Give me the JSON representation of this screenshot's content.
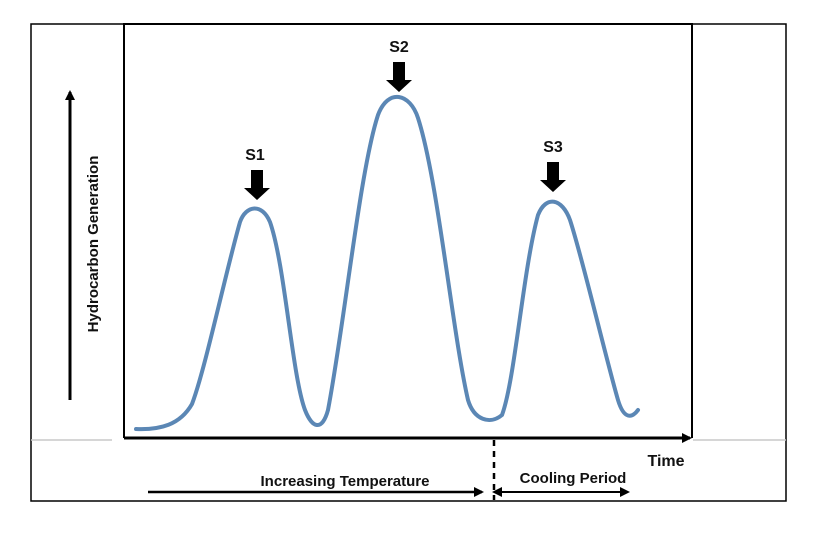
{
  "diagram": {
    "peaks": [
      {
        "label": "S1"
      },
      {
        "label": "S2"
      },
      {
        "label": "S3"
      }
    ],
    "y_axis_label": "Hydrocarbon Generation",
    "x_axis_label": "Time",
    "phases": [
      {
        "label": "Increasing Temperature"
      },
      {
        "label": "Cooling Period"
      }
    ],
    "colors": {
      "curve": "#5B87B5",
      "axes": "#000000",
      "frame": "#000000",
      "guide_line": "#C8C8C8"
    }
  }
}
